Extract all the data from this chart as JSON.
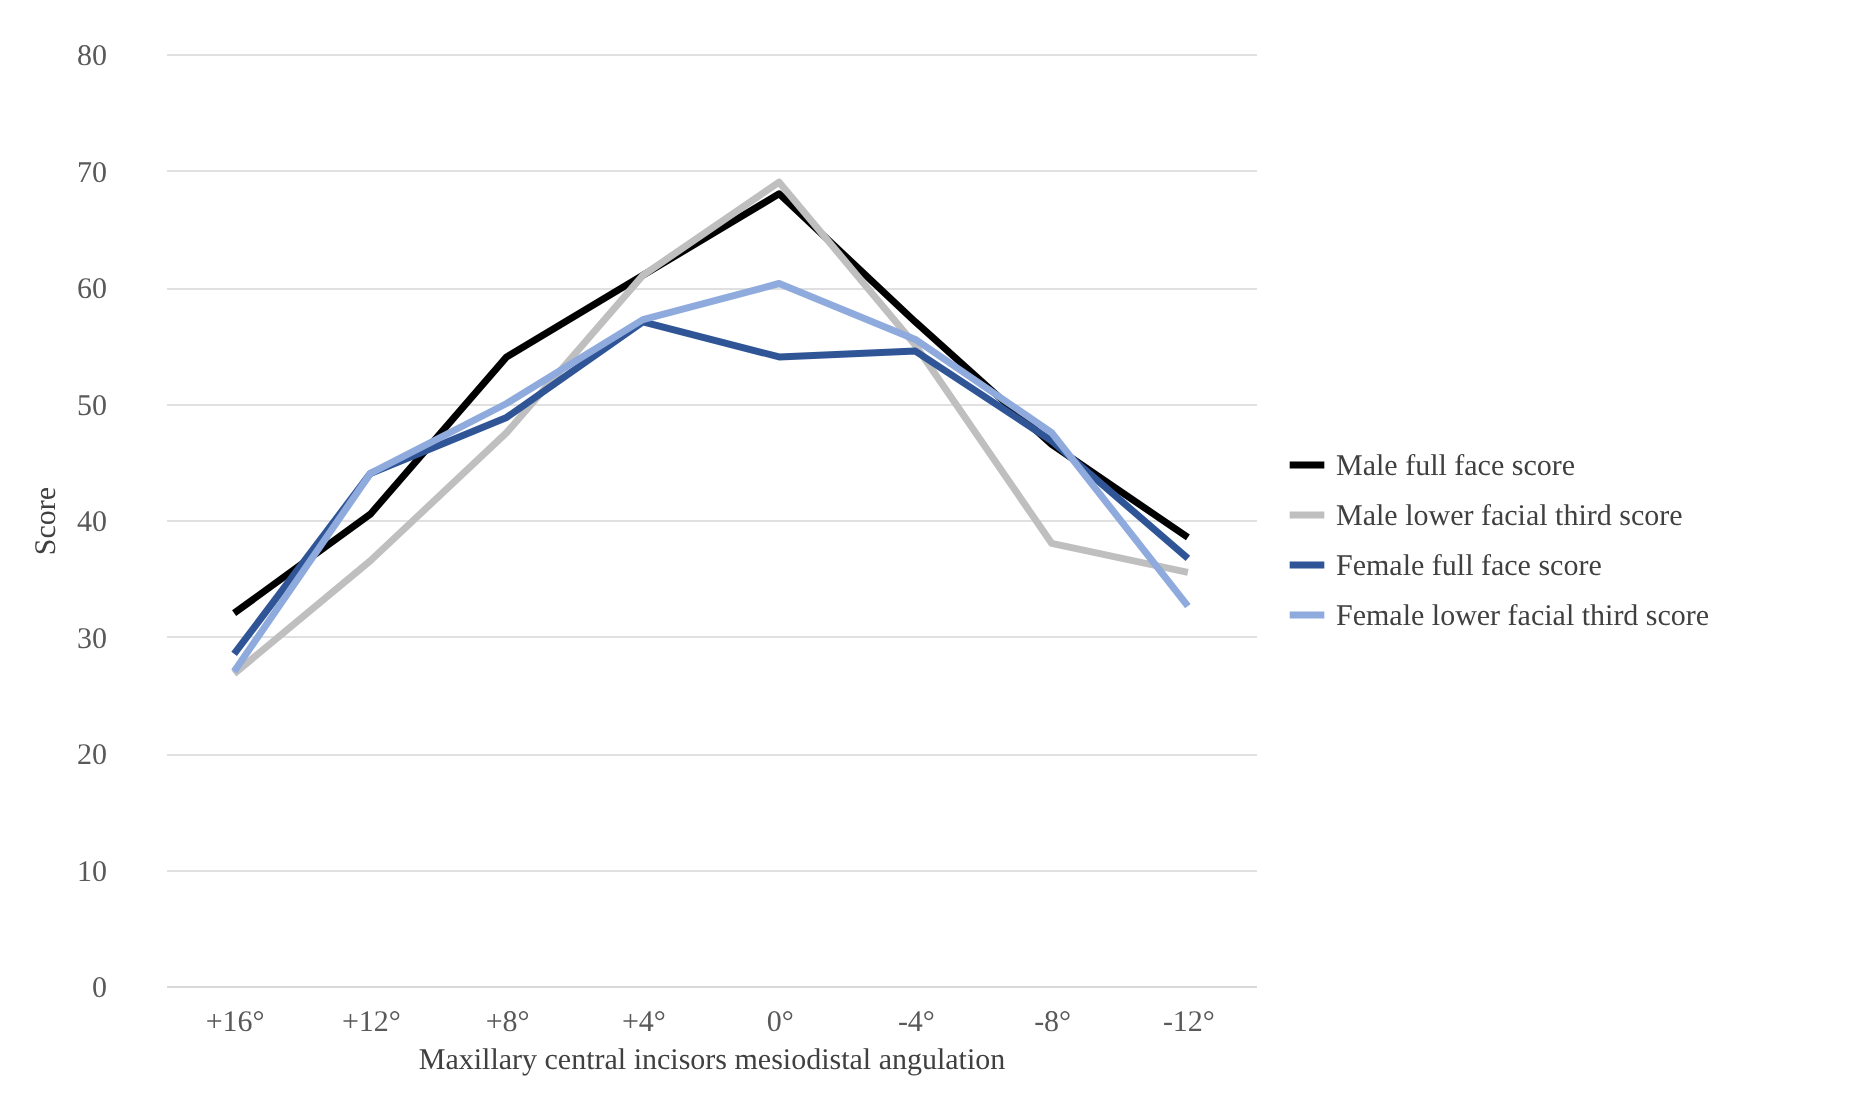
{
  "chart_data": {
    "type": "line",
    "xlabel": "Maxillary central incisors mesiodistal angulation",
    "ylabel": "Score",
    "categories": [
      "+16°",
      "+12°",
      "+8°",
      "+4°",
      "0°",
      "-4°",
      "-8°",
      "-12°"
    ],
    "series": [
      {
        "name": "Male full face score",
        "color": "#000000",
        "values": [
          32,
          40.5,
          54,
          61,
          68,
          57,
          46.5,
          38.5
        ]
      },
      {
        "name": "Male lower facial third score",
        "color": "#bfbfbf",
        "values": [
          26.8,
          36.5,
          47.5,
          61,
          69,
          55,
          38,
          35.5
        ]
      },
      {
        "name": "Female full face score",
        "color": "#2f5597",
        "values": [
          28.5,
          44,
          48.8,
          57,
          54,
          54.5,
          46.8,
          36.7
        ]
      },
      {
        "name": "Female lower facial third score",
        "color": "#8faadc",
        "values": [
          27,
          44,
          50,
          57.2,
          60.3,
          55.5,
          47.5,
          32.6
        ]
      }
    ],
    "ylim": [
      0,
      80
    ],
    "yticks": [
      0,
      10,
      20,
      30,
      40,
      50,
      60,
      70,
      80
    ],
    "grid": "y",
    "legend": "right",
    "marker": "none",
    "line_style": "solid"
  }
}
